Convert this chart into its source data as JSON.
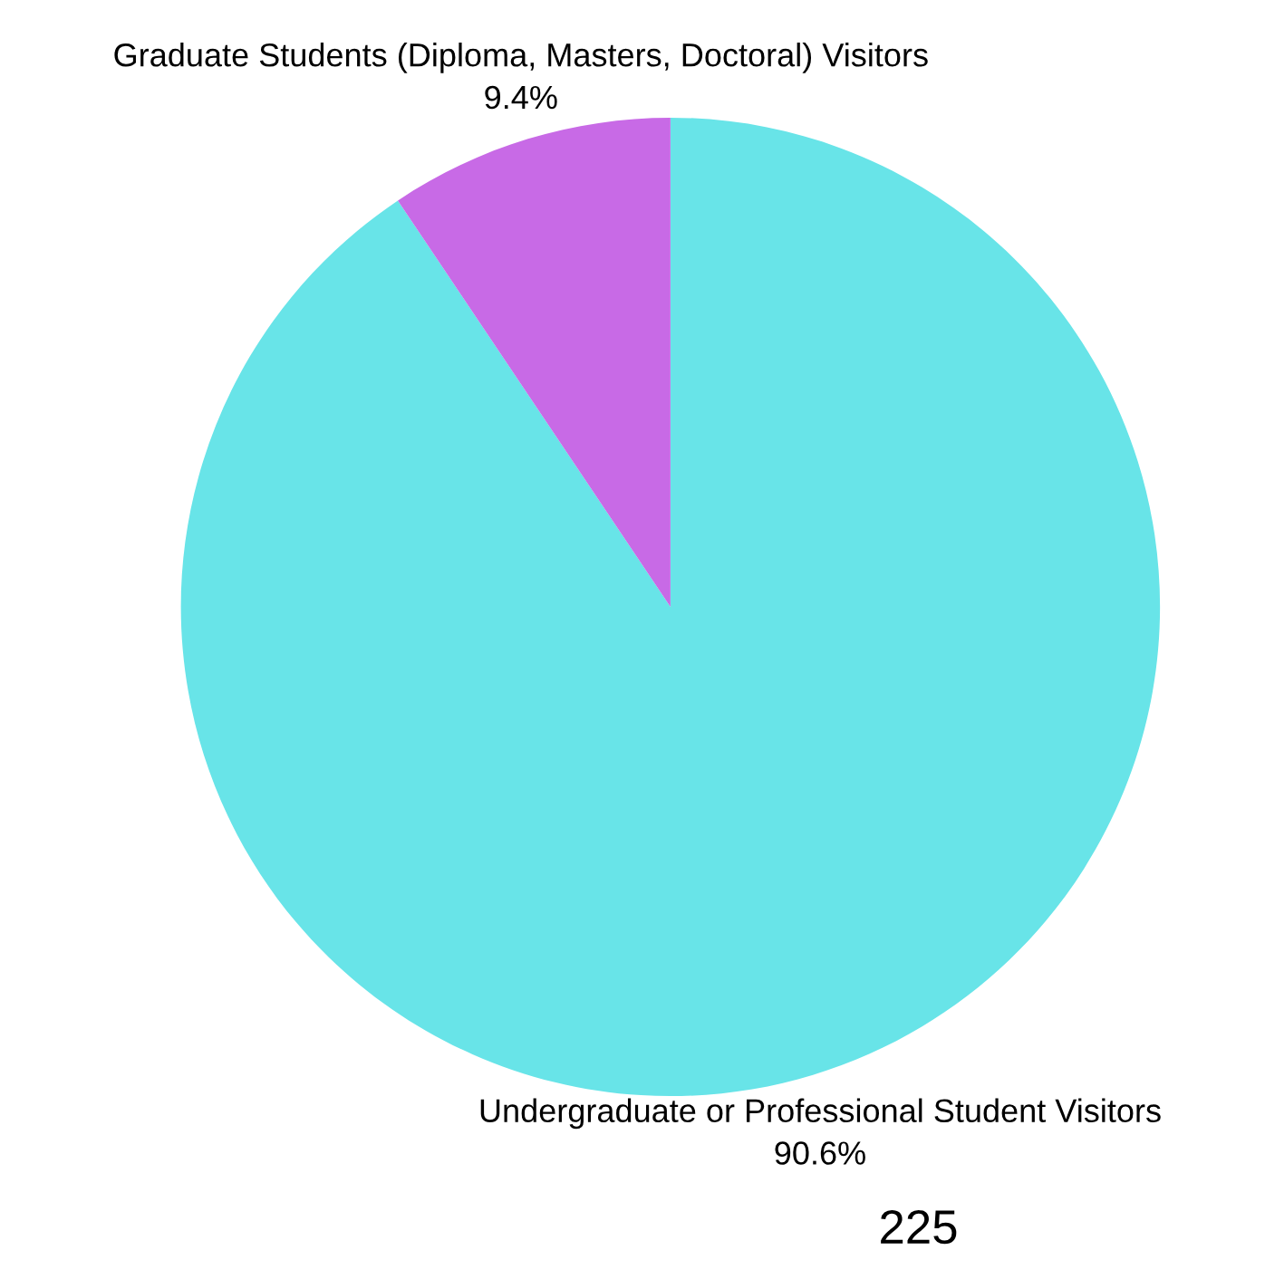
{
  "chart_data": {
    "type": "pie",
    "categories": [
      "Undergraduate or Professional Student Visitors",
      "Graduate Students (Diploma, Masters, Doctoral) Visitors"
    ],
    "values": [
      90.6,
      9.4
    ],
    "colors": [
      "#68e4e8",
      "#c86ae6"
    ],
    "value_labels": [
      "90.6%",
      "9.4%"
    ],
    "annotations": [
      "225"
    ],
    "legend": false
  }
}
